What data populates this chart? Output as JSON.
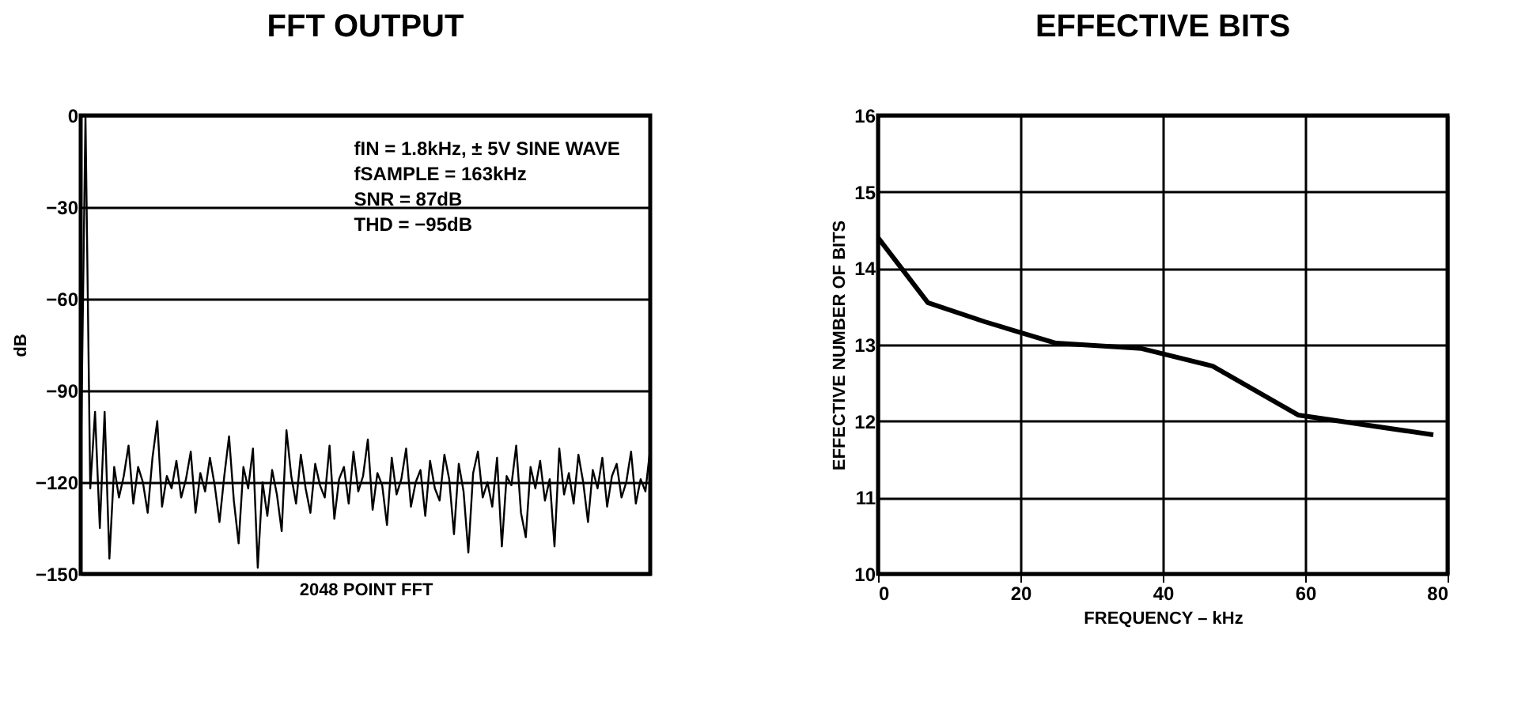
{
  "chart_data": [
    {
      "type": "line",
      "title": "FFT OUTPUT",
      "xlabel": "2048 POINT FFT",
      "ylabel": "dB",
      "categories": [
        null,
        null,
        null,
        null,
        null,
        null,
        null,
        null,
        null,
        null,
        null,
        null,
        null,
        null,
        null,
        null,
        null,
        null,
        null,
        null,
        null,
        null,
        null,
        null,
        null,
        null,
        null,
        null,
        null,
        null,
        null,
        null,
        null,
        null,
        null,
        null,
        null,
        null,
        null,
        null,
        null,
        null,
        null,
        null,
        null,
        null,
        null,
        null,
        null,
        null,
        null,
        null,
        null,
        null,
        null,
        null,
        null,
        null,
        null,
        null,
        null,
        null,
        null,
        null,
        null,
        null,
        null,
        null,
        null,
        null,
        null,
        null,
        null,
        null,
        null,
        null,
        null,
        null,
        null,
        null,
        null,
        null,
        null,
        null,
        null,
        null,
        null,
        null,
        null,
        null,
        null,
        null,
        null,
        null,
        null,
        null,
        null,
        null,
        null,
        null,
        null,
        null,
        null,
        null,
        null,
        null,
        null,
        null,
        null,
        null,
        null,
        null,
        null,
        null,
        null,
        null,
        null,
        null,
        null,
        null
      ],
      "series": [
        {
          "color": "#000000",
          "values": [
            -118,
            0,
            -122,
            -97,
            -135,
            -97,
            -145,
            -115,
            -125,
            -118,
            -108,
            -127,
            -115,
            -120,
            -130,
            -112,
            -100,
            -128,
            -118,
            -122,
            -113,
            -125,
            -119,
            -110,
            -130,
            -117,
            -123,
            -112,
            -121,
            -133,
            -118,
            -105,
            -126,
            -140,
            -115,
            -122,
            -109,
            -148,
            -120,
            -131,
            -116,
            -124,
            -136,
            -103,
            -118,
            -127,
            -111,
            -122,
            -130,
            -114,
            -121,
            -125,
            -108,
            -132,
            -119,
            -115,
            -127,
            -110,
            -123,
            -118,
            -106,
            -129,
            -117,
            -121,
            -134,
            -112,
            -124,
            -119,
            -109,
            -128,
            -120,
            -116,
            -131,
            -113,
            -122,
            -126,
            -111,
            -119,
            -137,
            -114,
            -123,
            -143,
            -117,
            -110,
            -125,
            -120,
            -128,
            -112,
            -141,
            -118,
            -121,
            -108,
            -130,
            -138,
            -115,
            -122,
            -113,
            -126,
            -119,
            -141,
            -109,
            -124,
            -117,
            -127,
            -111,
            -120,
            -133,
            -116,
            -122,
            -112,
            -128,
            -118,
            -114,
            -125,
            -120,
            -110,
            -127,
            -119,
            -123,
            -109
          ]
        }
      ],
      "ylim": [
        -150,
        0
      ],
      "yticks": [
        0,
        -30,
        -60,
        -90,
        -120,
        -150
      ],
      "grid": "y",
      "tick_labels": "y",
      "annotations": [
        "fIN = 1.8kHz, ± 5V SINE WAVE",
        "fSAMPLE = 163kHz",
        "SNR = 87dB",
        "THD = −95dB"
      ]
    },
    {
      "type": "line",
      "title": "EFFECTIVE BITS",
      "xlabel": "FREQUENCY – kHz",
      "ylabel": "EFFECTIVE NUMBER OF BITS",
      "x": [
        0,
        7,
        15,
        25,
        37,
        47,
        59,
        78
      ],
      "series": [
        {
          "color": "#000000",
          "values": [
            14.4,
            13.55,
            13.3,
            13.02,
            12.95,
            12.72,
            12.08,
            11.82
          ]
        }
      ],
      "xlim": [
        0,
        80
      ],
      "xticks": [
        0,
        20,
        40,
        60,
        80
      ],
      "ylim": [
        10,
        16
      ],
      "yticks": [
        10,
        11,
        12,
        13,
        14,
        15,
        16
      ],
      "grid": true
    }
  ]
}
